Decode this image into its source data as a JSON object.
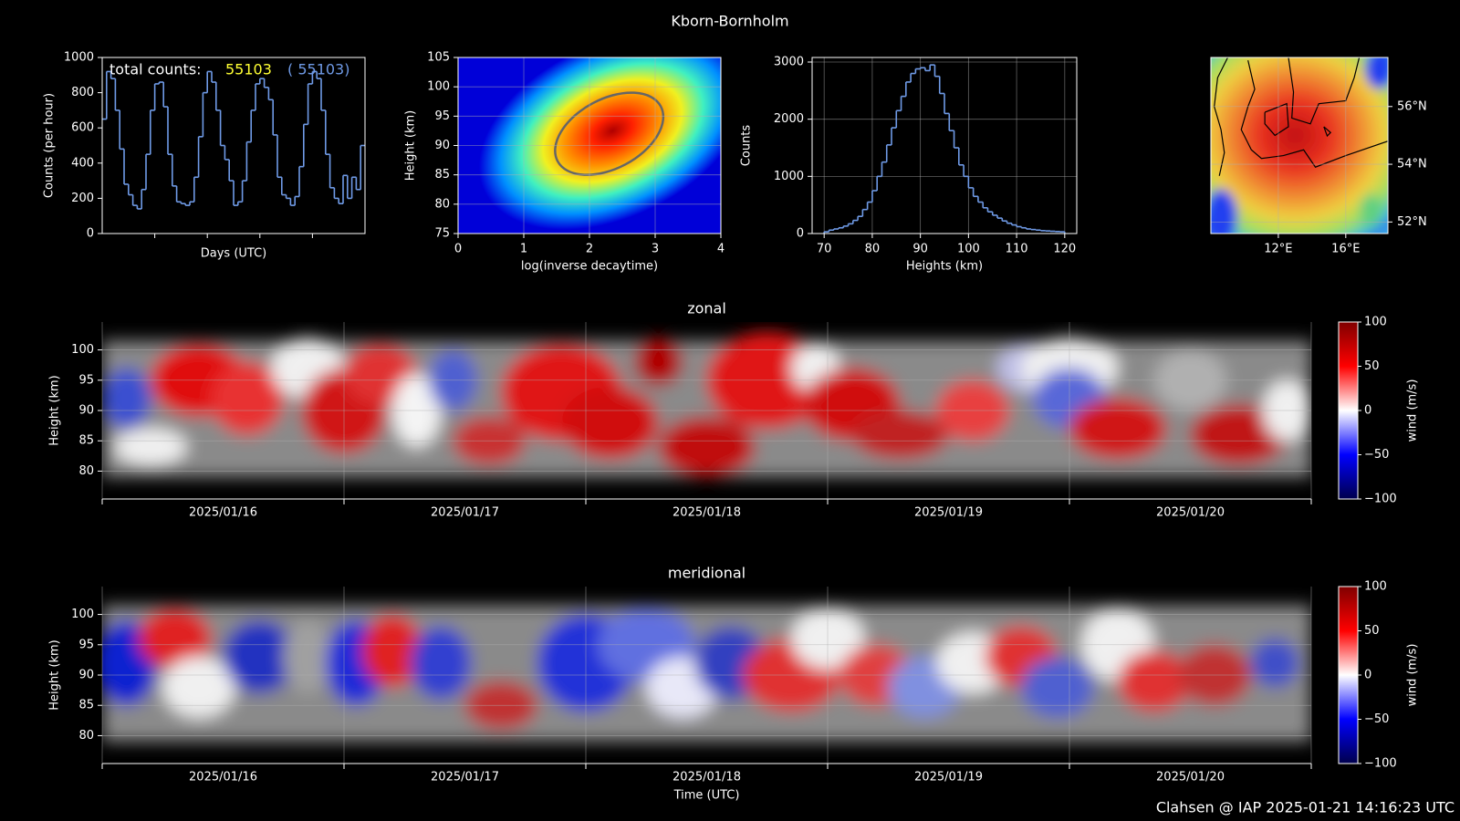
{
  "title": "Kborn-Bornholm",
  "footer": "Clahsen @ IAP 2025-01-21 14:16:23 UTC",
  "chart_data": [
    {
      "type": "step",
      "xlabel": "Days (UTC)",
      "ylabel": "Counts (per hour)",
      "color": "#6f9ae6",
      "ylim": [
        0,
        1000
      ],
      "yticks": [
        0,
        200,
        400,
        600,
        800,
        1000
      ],
      "annotations": [
        {
          "text": "total counts:",
          "color": "#ffffff"
        },
        {
          "text": "55103",
          "color": "#ffff33"
        },
        {
          "text": "( 55103)",
          "color": "#6f9ae6"
        }
      ],
      "values": [
        650,
        920,
        880,
        700,
        480,
        280,
        220,
        160,
        140,
        250,
        450,
        700,
        850,
        860,
        720,
        450,
        270,
        180,
        170,
        160,
        180,
        320,
        550,
        800,
        920,
        860,
        700,
        500,
        420,
        300,
        160,
        180,
        300,
        520,
        700,
        850,
        880,
        830,
        760,
        560,
        320,
        220,
        200,
        160,
        210,
        380,
        620,
        850,
        920,
        880,
        700,
        450,
        260,
        200,
        170,
        330,
        200,
        320,
        250,
        500
      ]
    },
    {
      "type": "heatmap",
      "xlabel": "log(inverse decaytime)",
      "ylabel": "Height (km)",
      "xlim": [
        0,
        4
      ],
      "xticks": [
        0,
        1,
        2,
        3,
        4
      ],
      "ylim": [
        75,
        105
      ],
      "yticks": [
        75,
        80,
        85,
        90,
        95,
        100,
        105
      ],
      "grid": true
    },
    {
      "type": "histogram",
      "xlabel": "Heights (km)",
      "ylabel": "Counts",
      "color": "#6f9ae6",
      "grid": true,
      "xlim": [
        67.5,
        122.5
      ],
      "xticks": [
        70,
        80,
        90,
        100,
        110,
        120
      ],
      "ylim": [
        0,
        3080
      ],
      "yticks": [
        0,
        1000,
        2000,
        3000
      ],
      "bins": [
        70,
        71,
        72,
        73,
        74,
        75,
        76,
        77,
        78,
        79,
        80,
        81,
        82,
        83,
        84,
        85,
        86,
        87,
        88,
        89,
        90,
        91,
        92,
        93,
        94,
        95,
        96,
        97,
        98,
        99,
        100,
        101,
        102,
        103,
        104,
        105,
        106,
        107,
        108,
        109,
        110,
        111,
        112,
        113,
        114,
        115,
        116,
        117,
        118,
        119,
        120
      ],
      "values": [
        30,
        60,
        80,
        100,
        130,
        170,
        230,
        300,
        420,
        550,
        750,
        1000,
        1250,
        1550,
        1850,
        2150,
        2400,
        2650,
        2800,
        2880,
        2900,
        2850,
        2950,
        2750,
        2450,
        2100,
        1800,
        1500,
        1200,
        1000,
        800,
        650,
        550,
        450,
        380,
        320,
        270,
        220,
        180,
        150,
        120,
        100,
        80,
        70,
        60,
        50,
        45,
        40,
        35,
        30
      ]
    },
    {
      "type": "map",
      "grid": true,
      "xlim": [
        8,
        18.5
      ],
      "ylim": [
        51.6,
        57.7
      ],
      "xticks": [
        {
          "value": 12,
          "label": "12°E"
        },
        {
          "value": 16,
          "label": "16°E"
        }
      ],
      "yticks": [
        {
          "value": 52,
          "label": "52°N"
        },
        {
          "value": 54,
          "label": "54°N"
        },
        {
          "value": 56,
          "label": "56°N"
        }
      ]
    },
    {
      "type": "heatmap",
      "title": "zonal",
      "ylabel": "Height (km)",
      "grid": true,
      "categories": [
        "2025/01/16",
        "2025/01/17",
        "2025/01/18",
        "2025/01/19",
        "2025/01/20"
      ],
      "ylim": [
        75.4,
        104.6
      ],
      "yticks": [
        80,
        85,
        90,
        95,
        100
      ],
      "colorbar": {
        "label": "wind (m/s)",
        "lim": [
          -100,
          100
        ],
        "ticks": [
          {
            "value": -100,
            "label": "−100"
          },
          {
            "value": -50,
            "label": "−50"
          },
          0,
          50,
          100
        ]
      }
    },
    {
      "type": "heatmap",
      "title": "meridional",
      "ylabel": "Height (km)",
      "xlabel": "Time (UTC)",
      "grid": true,
      "categories": [
        "2025/01/16",
        "2025/01/17",
        "2025/01/18",
        "2025/01/19",
        "2025/01/20"
      ],
      "ylim": [
        75.4,
        104.6
      ],
      "yticks": [
        80,
        85,
        90,
        95,
        100
      ],
      "colorbar": {
        "label": "wind (m/s)",
        "lim": [
          -100,
          100
        ],
        "ticks": [
          {
            "value": -100,
            "label": "−100"
          },
          {
            "value": -50,
            "label": "−50"
          },
          0,
          50,
          100
        ]
      }
    }
  ]
}
